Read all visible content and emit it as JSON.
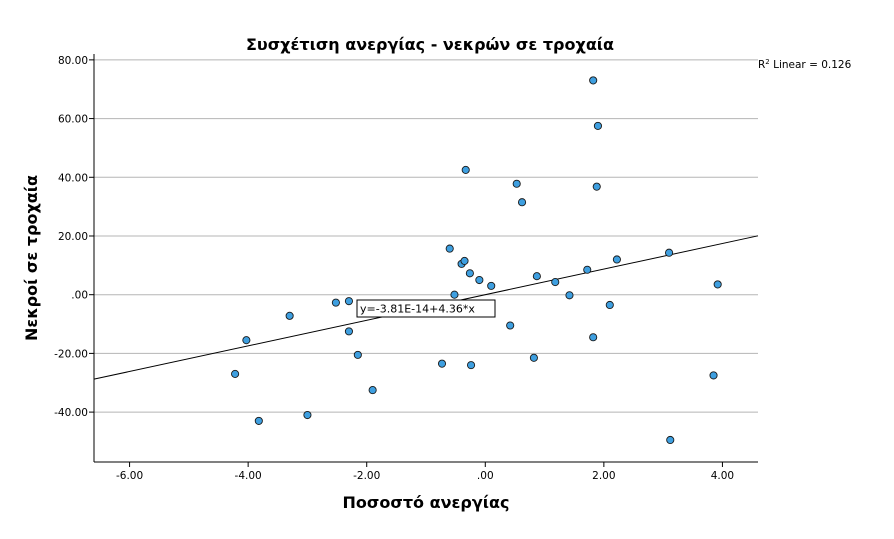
{
  "chart_data": {
    "type": "scatter",
    "title": "Συσχέτιση ανεργίας - νεκρών σε τροχαία",
    "xlabel": "Ποσοστό ανεργίας",
    "ylabel": "Νεκροί σε τροχαία",
    "xlim": [
      -6.6,
      4.6
    ],
    "ylim": [
      -57,
      82
    ],
    "x_ticks": [
      -6,
      -4,
      -2,
      0,
      2,
      4
    ],
    "x_tick_labels": [
      "-6.00",
      "-4.00",
      "-2.00",
      ".00",
      "2.00",
      "4.00"
    ],
    "y_ticks": [
      -40,
      -20,
      0,
      20,
      40,
      60,
      80
    ],
    "y_tick_labels": [
      "-40.00",
      "-20.00",
      ".00",
      "20.00",
      "40.00",
      "60.00",
      "80.00"
    ],
    "grid": "horizontal",
    "marker_color": "#3e9fe0",
    "fit_line": {
      "label": "y=-3.81E-14+4.36*x",
      "intercept": 0,
      "slope": 4.36,
      "r2_label": "Linear = 0.126"
    },
    "points": [
      {
        "x": -4.22,
        "y": -27.0
      },
      {
        "x": -4.03,
        "y": -15.5
      },
      {
        "x": -3.82,
        "y": -43.0
      },
      {
        "x": -3.3,
        "y": -7.2
      },
      {
        "x": -3.0,
        "y": -41.0
      },
      {
        "x": -2.52,
        "y": -2.7
      },
      {
        "x": -2.3,
        "y": -2.2
      },
      {
        "x": -2.3,
        "y": -12.5
      },
      {
        "x": -2.15,
        "y": -20.5
      },
      {
        "x": -1.9,
        "y": -32.5
      },
      {
        "x": -0.73,
        "y": -23.5
      },
      {
        "x": -0.6,
        "y": 15.7
      },
      {
        "x": -0.52,
        "y": 0.0
      },
      {
        "x": -0.4,
        "y": 10.5
      },
      {
        "x": -0.35,
        "y": 11.5
      },
      {
        "x": -0.33,
        "y": 42.5
      },
      {
        "x": -0.26,
        "y": 7.3
      },
      {
        "x": -0.24,
        "y": -24.0
      },
      {
        "x": -0.1,
        "y": 5.0
      },
      {
        "x": 0.1,
        "y": 3.0
      },
      {
        "x": 0.42,
        "y": -10.5
      },
      {
        "x": 0.53,
        "y": 37.8
      },
      {
        "x": 0.62,
        "y": 31.5
      },
      {
        "x": 0.82,
        "y": -21.5
      },
      {
        "x": 0.87,
        "y": 6.3
      },
      {
        "x": 1.18,
        "y": 4.3
      },
      {
        "x": 1.42,
        "y": -0.2
      },
      {
        "x": 1.72,
        "y": 8.5
      },
      {
        "x": 1.82,
        "y": 73.0
      },
      {
        "x": 1.82,
        "y": -14.5
      },
      {
        "x": 1.88,
        "y": 36.8
      },
      {
        "x": 1.9,
        "y": 57.5
      },
      {
        "x": 2.1,
        "y": -3.5
      },
      {
        "x": 2.22,
        "y": 12.0
      },
      {
        "x": 3.1,
        "y": 14.3
      },
      {
        "x": 3.12,
        "y": -49.5
      },
      {
        "x": 3.85,
        "y": -27.5
      },
      {
        "x": 3.92,
        "y": 3.5
      }
    ]
  }
}
